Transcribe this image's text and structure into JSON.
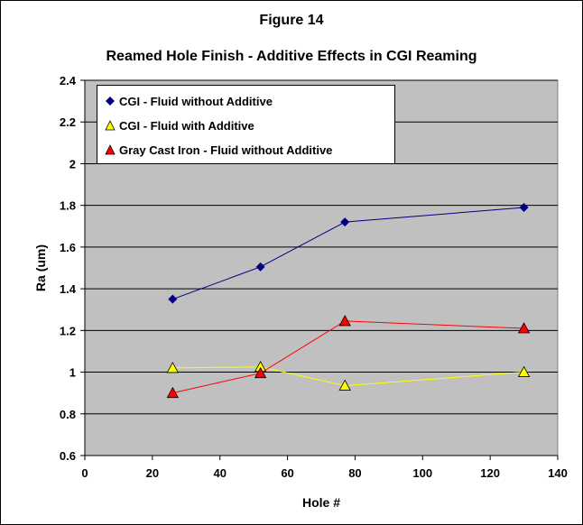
{
  "figure_title": "Figure 14",
  "chart_data": {
    "type": "scatter",
    "title": "Reamed Hole Finish - Additive Effects in CGI Reaming",
    "xlabel": "Hole #",
    "ylabel": "Ra (um)",
    "xlim": [
      0,
      140
    ],
    "ylim": [
      0.6,
      2.4
    ],
    "x_ticks": [
      0,
      20,
      40,
      60,
      80,
      100,
      120,
      140
    ],
    "y_ticks": [
      0.6,
      0.8,
      1,
      1.2,
      1.4,
      1.6,
      1.8,
      2,
      2.2,
      2.4
    ],
    "x_tick_labels": [
      "0",
      "20",
      "40",
      "60",
      "80",
      "100",
      "120",
      "140"
    ],
    "y_tick_labels": [
      "0.6",
      "0.8",
      "1",
      "1.2",
      "1.4",
      "1.6",
      "1.8",
      "2",
      "2.2",
      "2.4"
    ],
    "grid": true,
    "legend_position": "top-left",
    "plot_background": "#c0c0c0",
    "series": [
      {
        "name": "CGI - Fluid without Additive",
        "marker": "diamond",
        "color": "#000080",
        "x": [
          26,
          52,
          77,
          130
        ],
        "y": [
          1.35,
          1.505,
          1.72,
          1.79
        ]
      },
      {
        "name": "CGI - Fluid with Additive",
        "marker": "triangle",
        "color": "#ffff00",
        "x": [
          26,
          52,
          77,
          130
        ],
        "y": [
          1.02,
          1.025,
          0.935,
          1.0
        ]
      },
      {
        "name": "Gray Cast Iron - Fluid without Additive",
        "marker": "triangle",
        "color": "#ff0000",
        "x": [
          26,
          52,
          77,
          130
        ],
        "y": [
          0.9,
          0.995,
          1.245,
          1.21
        ]
      }
    ]
  }
}
